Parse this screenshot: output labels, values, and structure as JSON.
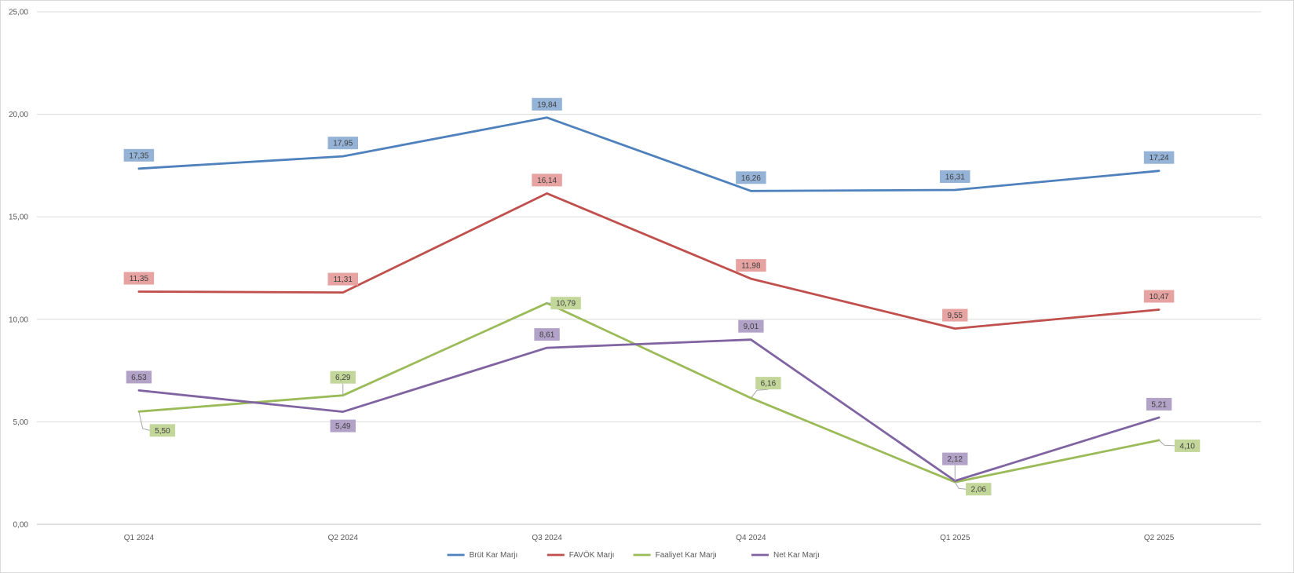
{
  "chart_data": {
    "type": "line",
    "categories": [
      "Q1 2024",
      "Q2 2024",
      "Q3 2024",
      "Q4 2024",
      "Q1 2025",
      "Q2 2025"
    ],
    "ylim": [
      0,
      25
    ],
    "yticks": [
      "0,00",
      "5,00",
      "10,00",
      "15,00",
      "20,00",
      "25,00"
    ],
    "grid": true,
    "legend_position": "bottom",
    "series": [
      {
        "name": "Brüt Kar Marjı",
        "color": "#4F81BD",
        "label_bg": "#95B3D7",
        "values": [
          17.35,
          17.95,
          19.84,
          16.26,
          16.31,
          17.24
        ],
        "labels": [
          "17,35",
          "17,95",
          "19,84",
          "16,26",
          "16,31",
          "17,24"
        ]
      },
      {
        "name": "FAVÖK Marjı",
        "color": "#C0504D",
        "label_bg": "#E6A3A1",
        "values": [
          11.35,
          11.31,
          16.14,
          11.98,
          9.55,
          10.47
        ],
        "labels": [
          "11,35",
          "11,31",
          "16,14",
          "11,98",
          "9,55",
          "10,47"
        ]
      },
      {
        "name": "Faaliyet Kar Marjı",
        "color": "#9BBB59",
        "label_bg": "#C4D79B",
        "values": [
          5.5,
          6.29,
          10.79,
          6.16,
          2.06,
          4.1
        ],
        "labels": [
          "5,50",
          "6,29",
          "10,79",
          "6,16",
          "2,06",
          "4,10"
        ]
      },
      {
        "name": "Net Kar Marjı",
        "color": "#8064A2",
        "label_bg": "#B3A2C7",
        "values": [
          6.53,
          5.49,
          8.61,
          9.01,
          2.12,
          5.21
        ],
        "labels": [
          "6,53",
          "5,49",
          "8,61",
          "9,01",
          "2,12",
          "5,21"
        ]
      }
    ]
  }
}
